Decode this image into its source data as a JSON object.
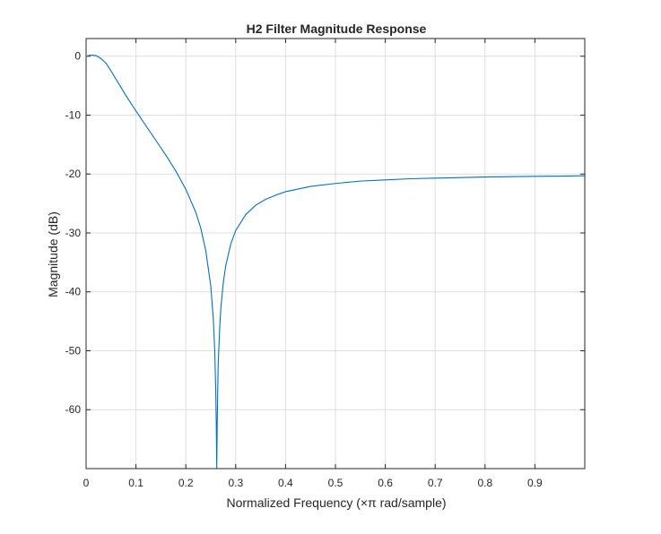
{
  "chart_data": {
    "type": "line",
    "title": "H2 Filter Magnitude Response",
    "xlabel": "Normalized Frequency (×π rad/sample)",
    "ylabel": "Magnitude (dB)",
    "xlim": [
      0,
      1
    ],
    "ylim": [
      -70,
      3
    ],
    "grid": true,
    "x_ticks": [
      0,
      0.1,
      0.2,
      0.3,
      0.4,
      0.5,
      0.6,
      0.7,
      0.8,
      0.9
    ],
    "x_tick_labels": [
      "0",
      "0.1",
      "0.2",
      "0.3",
      "0.4",
      "0.5",
      "0.6",
      "0.7",
      "0.8",
      "0.9"
    ],
    "y_ticks": [
      0,
      -10,
      -20,
      -30,
      -40,
      -50,
      -60
    ],
    "y_tick_labels": [
      "0",
      "-10",
      "-20",
      "-30",
      "-40",
      "-50",
      "-60"
    ],
    "line_color": "#0072BD",
    "series": [
      {
        "x": [
          0,
          0.01,
          0.02,
          0.03,
          0.04,
          0.05,
          0.06,
          0.07,
          0.08,
          0.09,
          0.1,
          0.12,
          0.14,
          0.16,
          0.18,
          0.2,
          0.22,
          0.23,
          0.24,
          0.25,
          0.255,
          0.258,
          0.26,
          0.261,
          0.262,
          0.263,
          0.264,
          0.265,
          0.268,
          0.27,
          0.275,
          0.28,
          0.29,
          0.3,
          0.32,
          0.34,
          0.36,
          0.38,
          0.4,
          0.45,
          0.5,
          0.55,
          0.6,
          0.65,
          0.7,
          0.75,
          0.8,
          0.85,
          0.9,
          0.95,
          1.0
        ],
        "y": [
          0,
          0.2,
          0.1,
          -0.4,
          -1.2,
          -2.5,
          -3.9,
          -5.3,
          -6.7,
          -8.0,
          -9.3,
          -11.8,
          -14.3,
          -16.8,
          -19.5,
          -22.6,
          -26.5,
          -29.2,
          -33.0,
          -39.0,
          -44.5,
          -50.0,
          -57.0,
          -62.0,
          -70.0,
          -62.0,
          -56.5,
          -52.0,
          -46.0,
          -43.0,
          -38.5,
          -35.6,
          -31.9,
          -29.6,
          -26.9,
          -25.3,
          -24.3,
          -23.6,
          -23.0,
          -22.1,
          -21.6,
          -21.2,
          -21.0,
          -20.8,
          -20.7,
          -20.6,
          -20.5,
          -20.45,
          -20.4,
          -20.35,
          -20.3
        ]
      }
    ]
  }
}
